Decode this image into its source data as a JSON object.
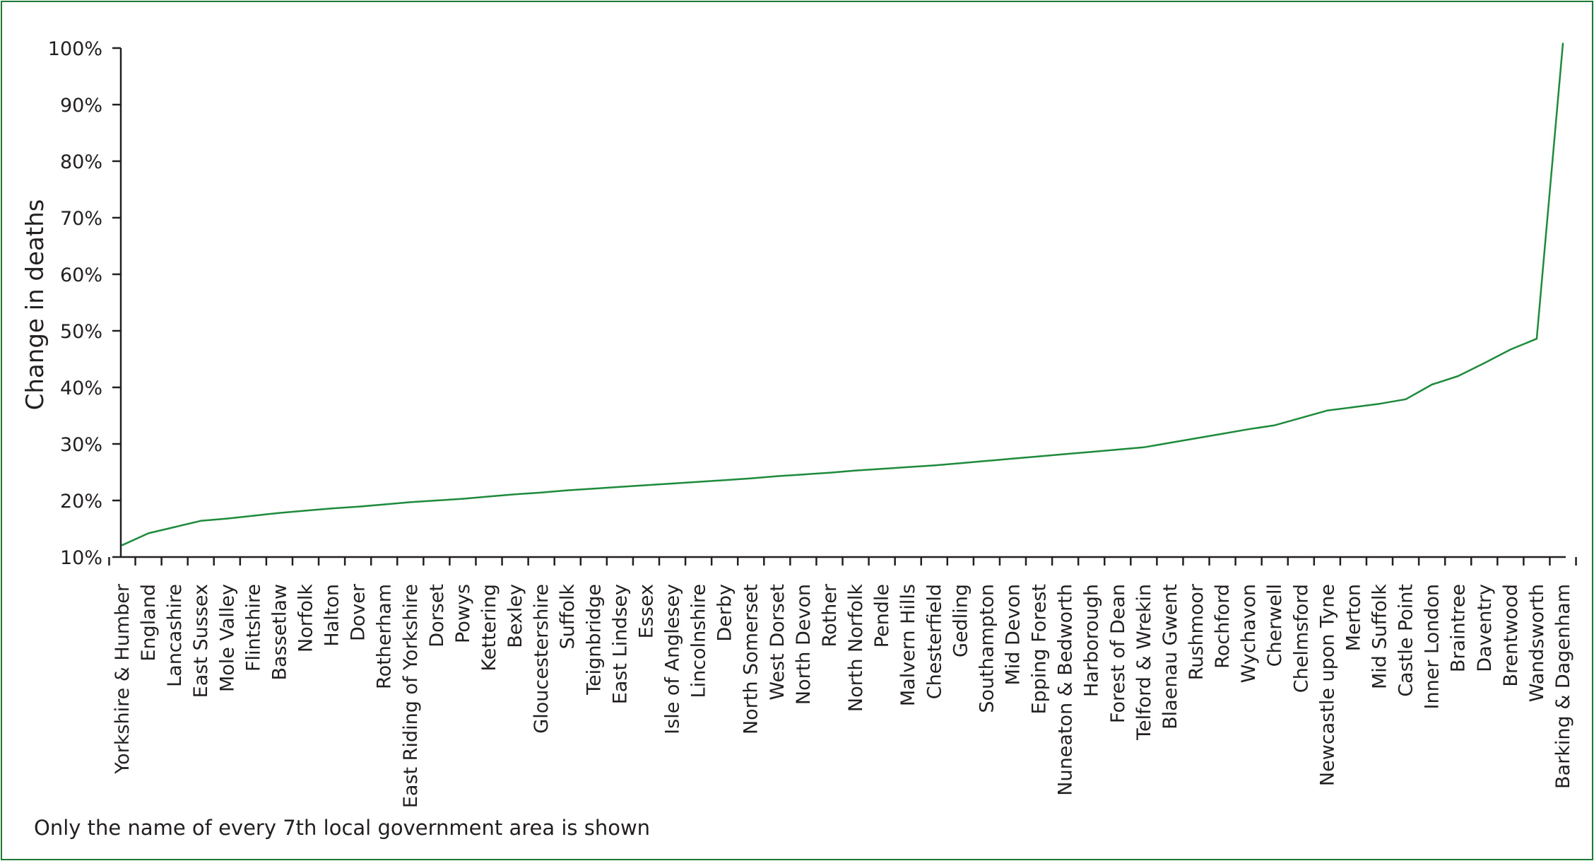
{
  "chart_data": {
    "type": "line",
    "ylabel": "Change in deaths",
    "xlabel": "",
    "ylim": [
      10,
      100
    ],
    "y_ticks": [
      "10%",
      "20%",
      "30%",
      "40%",
      "50%",
      "60%",
      "70%",
      "80%",
      "90%",
      "100%"
    ],
    "y_tick_values": [
      10,
      20,
      30,
      40,
      50,
      60,
      70,
      80,
      90,
      100
    ],
    "grid": false,
    "categories": [
      "Yorkshire & Humber",
      "England",
      "Lancashire",
      "East Sussex",
      "Mole Valley",
      "Flintshire",
      "Bassetlaw",
      "Norfolk",
      "Halton",
      "Dover",
      "Rotherham",
      "East Riding of Yorkshire",
      "Dorset",
      "Powys",
      "Kettering",
      "Bexley",
      "Gloucestershire",
      "Suffolk",
      "Teignbridge",
      "East Lindsey",
      "Essex",
      "Isle of Anglesey",
      "Lincolnshire",
      "Derby",
      "North Somerset",
      "West Dorset",
      "North Devon",
      "Rother",
      "North Norfolk",
      "Pendle",
      "Malvern Hills",
      "Chesterfield",
      "Gedling",
      "Southampton",
      "Mid Devon",
      "Epping Forest",
      "Nuneaton & Bedworth",
      "Harborough",
      "Forest of Dean",
      "Telford & Wrekin",
      "Blaenau Gwent",
      "Rushmoor",
      "Rochford",
      "Wychavon",
      "Cherwell",
      "Chelmsford",
      "Newcastle upon Tyne",
      "Merton",
      "Mid Suffolk",
      "Castle Point",
      "Inner London",
      "Braintree",
      "Daventry",
      "Brentwood",
      "Wandsworth",
      "Barking & Dagenham"
    ],
    "series": [
      {
        "values": [
          12.1,
          14.2,
          15.3,
          16.4,
          16.8,
          17.3,
          17.8,
          18.2,
          18.6,
          18.9,
          19.3,
          19.7,
          20.0,
          20.3,
          20.7,
          21.1,
          21.4,
          21.8,
          22.1,
          22.4,
          22.7,
          23.0,
          23.3,
          23.6,
          23.9,
          24.3,
          24.6,
          24.9,
          25.3,
          25.6,
          25.9,
          26.2,
          26.6,
          27.0,
          27.4,
          27.8,
          28.2,
          28.6,
          29.0,
          29.4,
          30.2,
          31.0,
          31.8,
          32.6,
          33.3,
          34.6,
          35.9,
          36.5,
          37.1,
          37.9,
          40.5,
          42.0,
          44.3,
          46.7,
          48.6,
          100.8
        ],
        "color": "#1e8a3c"
      }
    ],
    "note": "Only the name of every 7th local government area is shown"
  }
}
